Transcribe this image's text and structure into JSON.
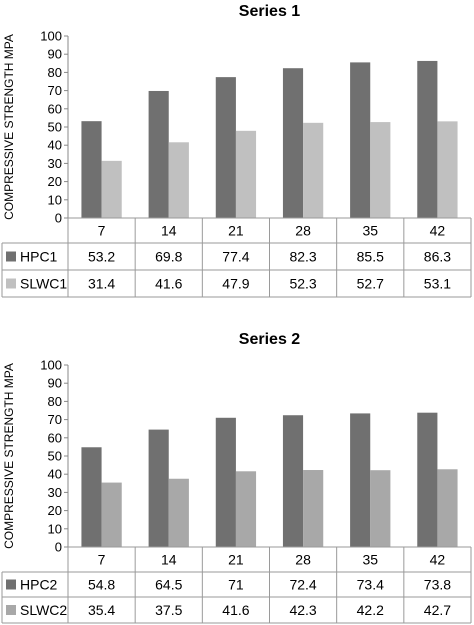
{
  "chart_data": [
    {
      "type": "bar",
      "title": "Series 1",
      "ylabel": "COMPRESSIVE  STRENGTH MPA",
      "xlabel": "",
      "categories": [
        "7",
        "14",
        "21",
        "28",
        "35",
        "42"
      ],
      "ylim": [
        0,
        100
      ],
      "yticks": [
        "0",
        "10",
        "20",
        "30",
        "40",
        "50",
        "60",
        "70",
        "80",
        "90",
        "100"
      ],
      "grid": false,
      "legend": "data-table-left",
      "series": [
        {
          "name": "HPC1",
          "color": "#707070",
          "values": [
            53.2,
            69.8,
            77.4,
            82.3,
            85.5,
            86.3
          ],
          "labels": [
            "53.2",
            "69.8",
            "77.4",
            "82.3",
            "85.5",
            "86.3"
          ]
        },
        {
          "name": "SLWC1",
          "color": "#c0c0c0",
          "values": [
            31.4,
            41.6,
            47.9,
            52.3,
            52.7,
            53.1
          ],
          "labels": [
            "31.4",
            "41.6",
            "47.9",
            "52.3",
            "52.7",
            "53.1"
          ]
        }
      ]
    },
    {
      "type": "bar",
      "title": "Series 2",
      "ylabel": "COMPRESSIVE STRENGTH MPA",
      "xlabel": "",
      "categories": [
        "7",
        "14",
        "21",
        "28",
        "35",
        "42"
      ],
      "ylim": [
        0,
        100
      ],
      "yticks": [
        "0",
        "10",
        "20",
        "30",
        "40",
        "50",
        "60",
        "70",
        "80",
        "90",
        "100"
      ],
      "grid": false,
      "legend": "data-table-left",
      "series": [
        {
          "name": "HPC2",
          "color": "#707070",
          "values": [
            54.8,
            64.5,
            71,
            72.4,
            73.4,
            73.8
          ],
          "labels": [
            "54.8",
            "64.5",
            "71",
            "72.4",
            "73.4",
            "73.8"
          ]
        },
        {
          "name": "SLWC2",
          "color": "#a8a8a8",
          "values": [
            35.4,
            37.5,
            41.6,
            42.3,
            42.2,
            42.7
          ],
          "labels": [
            "35.4",
            "37.5",
            "41.6",
            "42.3",
            "42.2",
            "42.7"
          ]
        }
      ]
    }
  ]
}
